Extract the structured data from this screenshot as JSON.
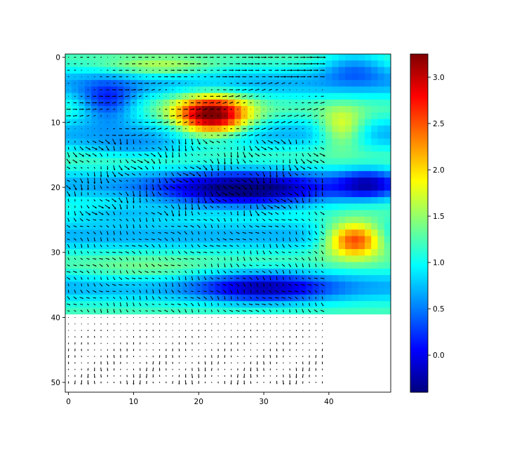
{
  "chart_data": {
    "type": "heatmap",
    "title": "",
    "xlabel": "",
    "ylabel": "",
    "heatmap_shape": [
      40,
      50
    ],
    "y_axis": "inverted",
    "xlim": [
      -0.5,
      49.5
    ],
    "ylim": [
      51.5,
      -0.5
    ],
    "x_ticks": [
      0,
      10,
      20,
      30,
      40
    ],
    "y_ticks": [
      0,
      10,
      20,
      30,
      40,
      50
    ],
    "x_tick_labels": [
      "0",
      "10",
      "20",
      "30",
      "40"
    ],
    "y_tick_labels": [
      "0",
      "10",
      "20",
      "30",
      "40",
      "50"
    ],
    "colormap": "jet",
    "color_range": [
      -0.4,
      3.25
    ],
    "colorbar_ticks": [
      0.0,
      0.5,
      1.0,
      1.5,
      2.0,
      2.5,
      3.0
    ],
    "colorbar_tick_labels": [
      "0.0",
      "0.5",
      "1.0",
      "1.5",
      "2.0",
      "2.5",
      "3.0"
    ],
    "heatmap_features": [
      {
        "row": 9,
        "col": 22,
        "value": 3.2
      },
      {
        "row": 28,
        "col": 44,
        "value": 2.7
      },
      {
        "row": 11,
        "col": 42,
        "value": 1.9
      },
      {
        "row": 20,
        "col": 27,
        "value": -0.3
      },
      {
        "row": 6,
        "col": 6,
        "value": 0.1
      },
      {
        "row": 35,
        "col": 30,
        "value": 0.0
      },
      {
        "row": 19,
        "col": 45,
        "value": 0.1
      },
      {
        "row": 1,
        "col": 43,
        "value": 0.5
      }
    ],
    "quiver": {
      "rows": [
        0,
        50
      ],
      "cols": [
        0,
        39
      ],
      "color": "#000000",
      "description": "vector field of short black arrows over rows 0-50, cols 0-39"
    }
  }
}
